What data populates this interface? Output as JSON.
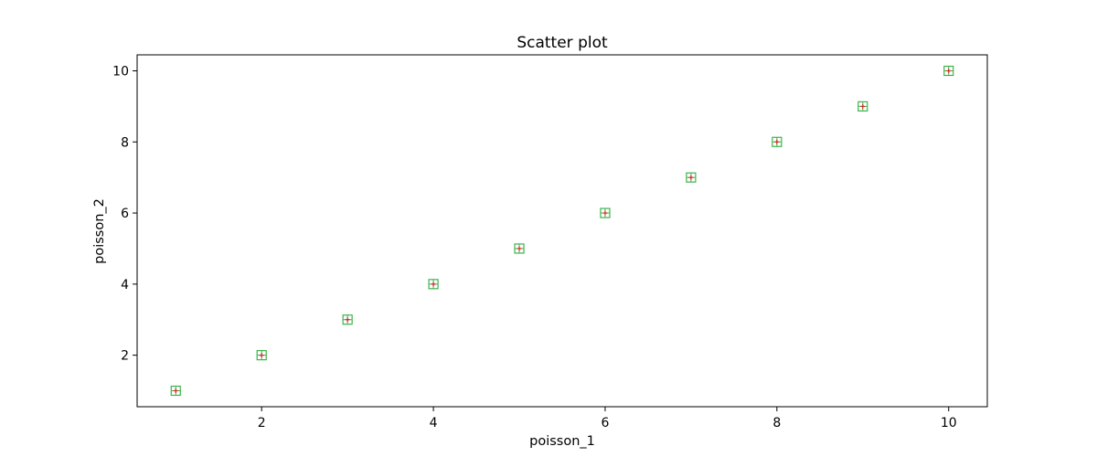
{
  "chart_data": {
    "type": "scatter",
    "title": "Scatter plot",
    "xlabel": "poisson_1",
    "ylabel": "poisson_2",
    "xlim": [
      0.55,
      10.45
    ],
    "ylim": [
      0.55,
      10.45
    ],
    "xticks": [
      2,
      4,
      6,
      8,
      10
    ],
    "yticks": [
      2,
      4,
      6,
      8,
      10
    ],
    "grid": false,
    "series": [
      {
        "x": [
          1,
          2,
          3,
          4,
          5,
          6,
          7,
          8,
          9,
          10
        ],
        "y": [
          1,
          2,
          3,
          4,
          5,
          6,
          7,
          8,
          9,
          10
        ],
        "marker": "square with plus",
        "marker_edge_color": "#3cb44b",
        "marker_plus_color": "#d62728"
      }
    ]
  }
}
